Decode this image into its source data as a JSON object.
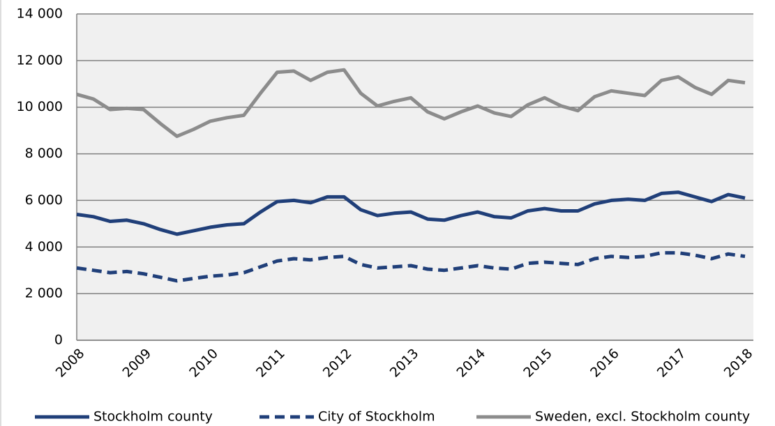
{
  "chart_data": {
    "type": "line",
    "categories": [
      "2008",
      null,
      null,
      null,
      "2009",
      null,
      null,
      null,
      "2010",
      null,
      null,
      null,
      "2011",
      null,
      null,
      null,
      "2012",
      null,
      null,
      null,
      "2013",
      null,
      null,
      null,
      "2014",
      null,
      null,
      null,
      "2015",
      null,
      null,
      null,
      "2016",
      null,
      null,
      null,
      "2017",
      null,
      null,
      null,
      "2018"
    ],
    "series": [
      {
        "name": "Stockholm county",
        "color": "#203f79",
        "dashed": false,
        "values": [
          5400,
          5300,
          5100,
          5150,
          5000,
          4750,
          4550,
          4700,
          4850,
          4950,
          5000,
          5500,
          5950,
          6000,
          5900,
          6150,
          6150,
          5600,
          5350,
          5450,
          5500,
          5200,
          5150,
          5350,
          5500,
          5300,
          5250,
          5550,
          5650,
          5550,
          5550,
          5850,
          6000,
          6050,
          6000,
          6300,
          6350,
          6150,
          5950,
          6250,
          6100
        ]
      },
      {
        "name": "City of Stockholm",
        "color": "#203f79",
        "dashed": true,
        "values": [
          3100,
          3000,
          2900,
          2950,
          2850,
          2700,
          2550,
          2650,
          2750,
          2800,
          2900,
          3150,
          3400,
          3500,
          3450,
          3550,
          3600,
          3250,
          3100,
          3150,
          3200,
          3050,
          3000,
          3100,
          3200,
          3100,
          3050,
          3300,
          3350,
          3300,
          3250,
          3500,
          3600,
          3550,
          3600,
          3750,
          3750,
          3650,
          3500,
          3700,
          3600
        ]
      },
      {
        "name": "Sweden, excl. Stockholm county",
        "color": "#8c8c8c",
        "dashed": false,
        "values": [
          10550,
          10350,
          9900,
          9950,
          9900,
          9300,
          8750,
          9050,
          9400,
          9550,
          9650,
          10600,
          11500,
          11550,
          11150,
          11500,
          11600,
          10600,
          10050,
          10250,
          10400,
          9800,
          9500,
          9800,
          10050,
          9750,
          9600,
          10100,
          10400,
          10050,
          9850,
          10450,
          10700,
          10600,
          10500,
          11150,
          11300,
          10850,
          10550,
          11150,
          11050
        ]
      }
    ],
    "ylim": [
      0,
      14000
    ],
    "yticks": [
      0,
      {
        "value": 2000,
        "label": "2 000"
      },
      {
        "value": 4000,
        "label": "4 000"
      },
      {
        "value": 6000,
        "label": "6 000"
      },
      {
        "value": 8000,
        "label": "8 000"
      },
      {
        "value": 10000,
        "label": "10 000"
      },
      {
        "value": 12000,
        "label": "12 000"
      },
      {
        "value": 14000,
        "label": "14 000"
      }
    ],
    "grid": true,
    "plot_background": "#f0f0f0",
    "legend_position": "bottom"
  }
}
